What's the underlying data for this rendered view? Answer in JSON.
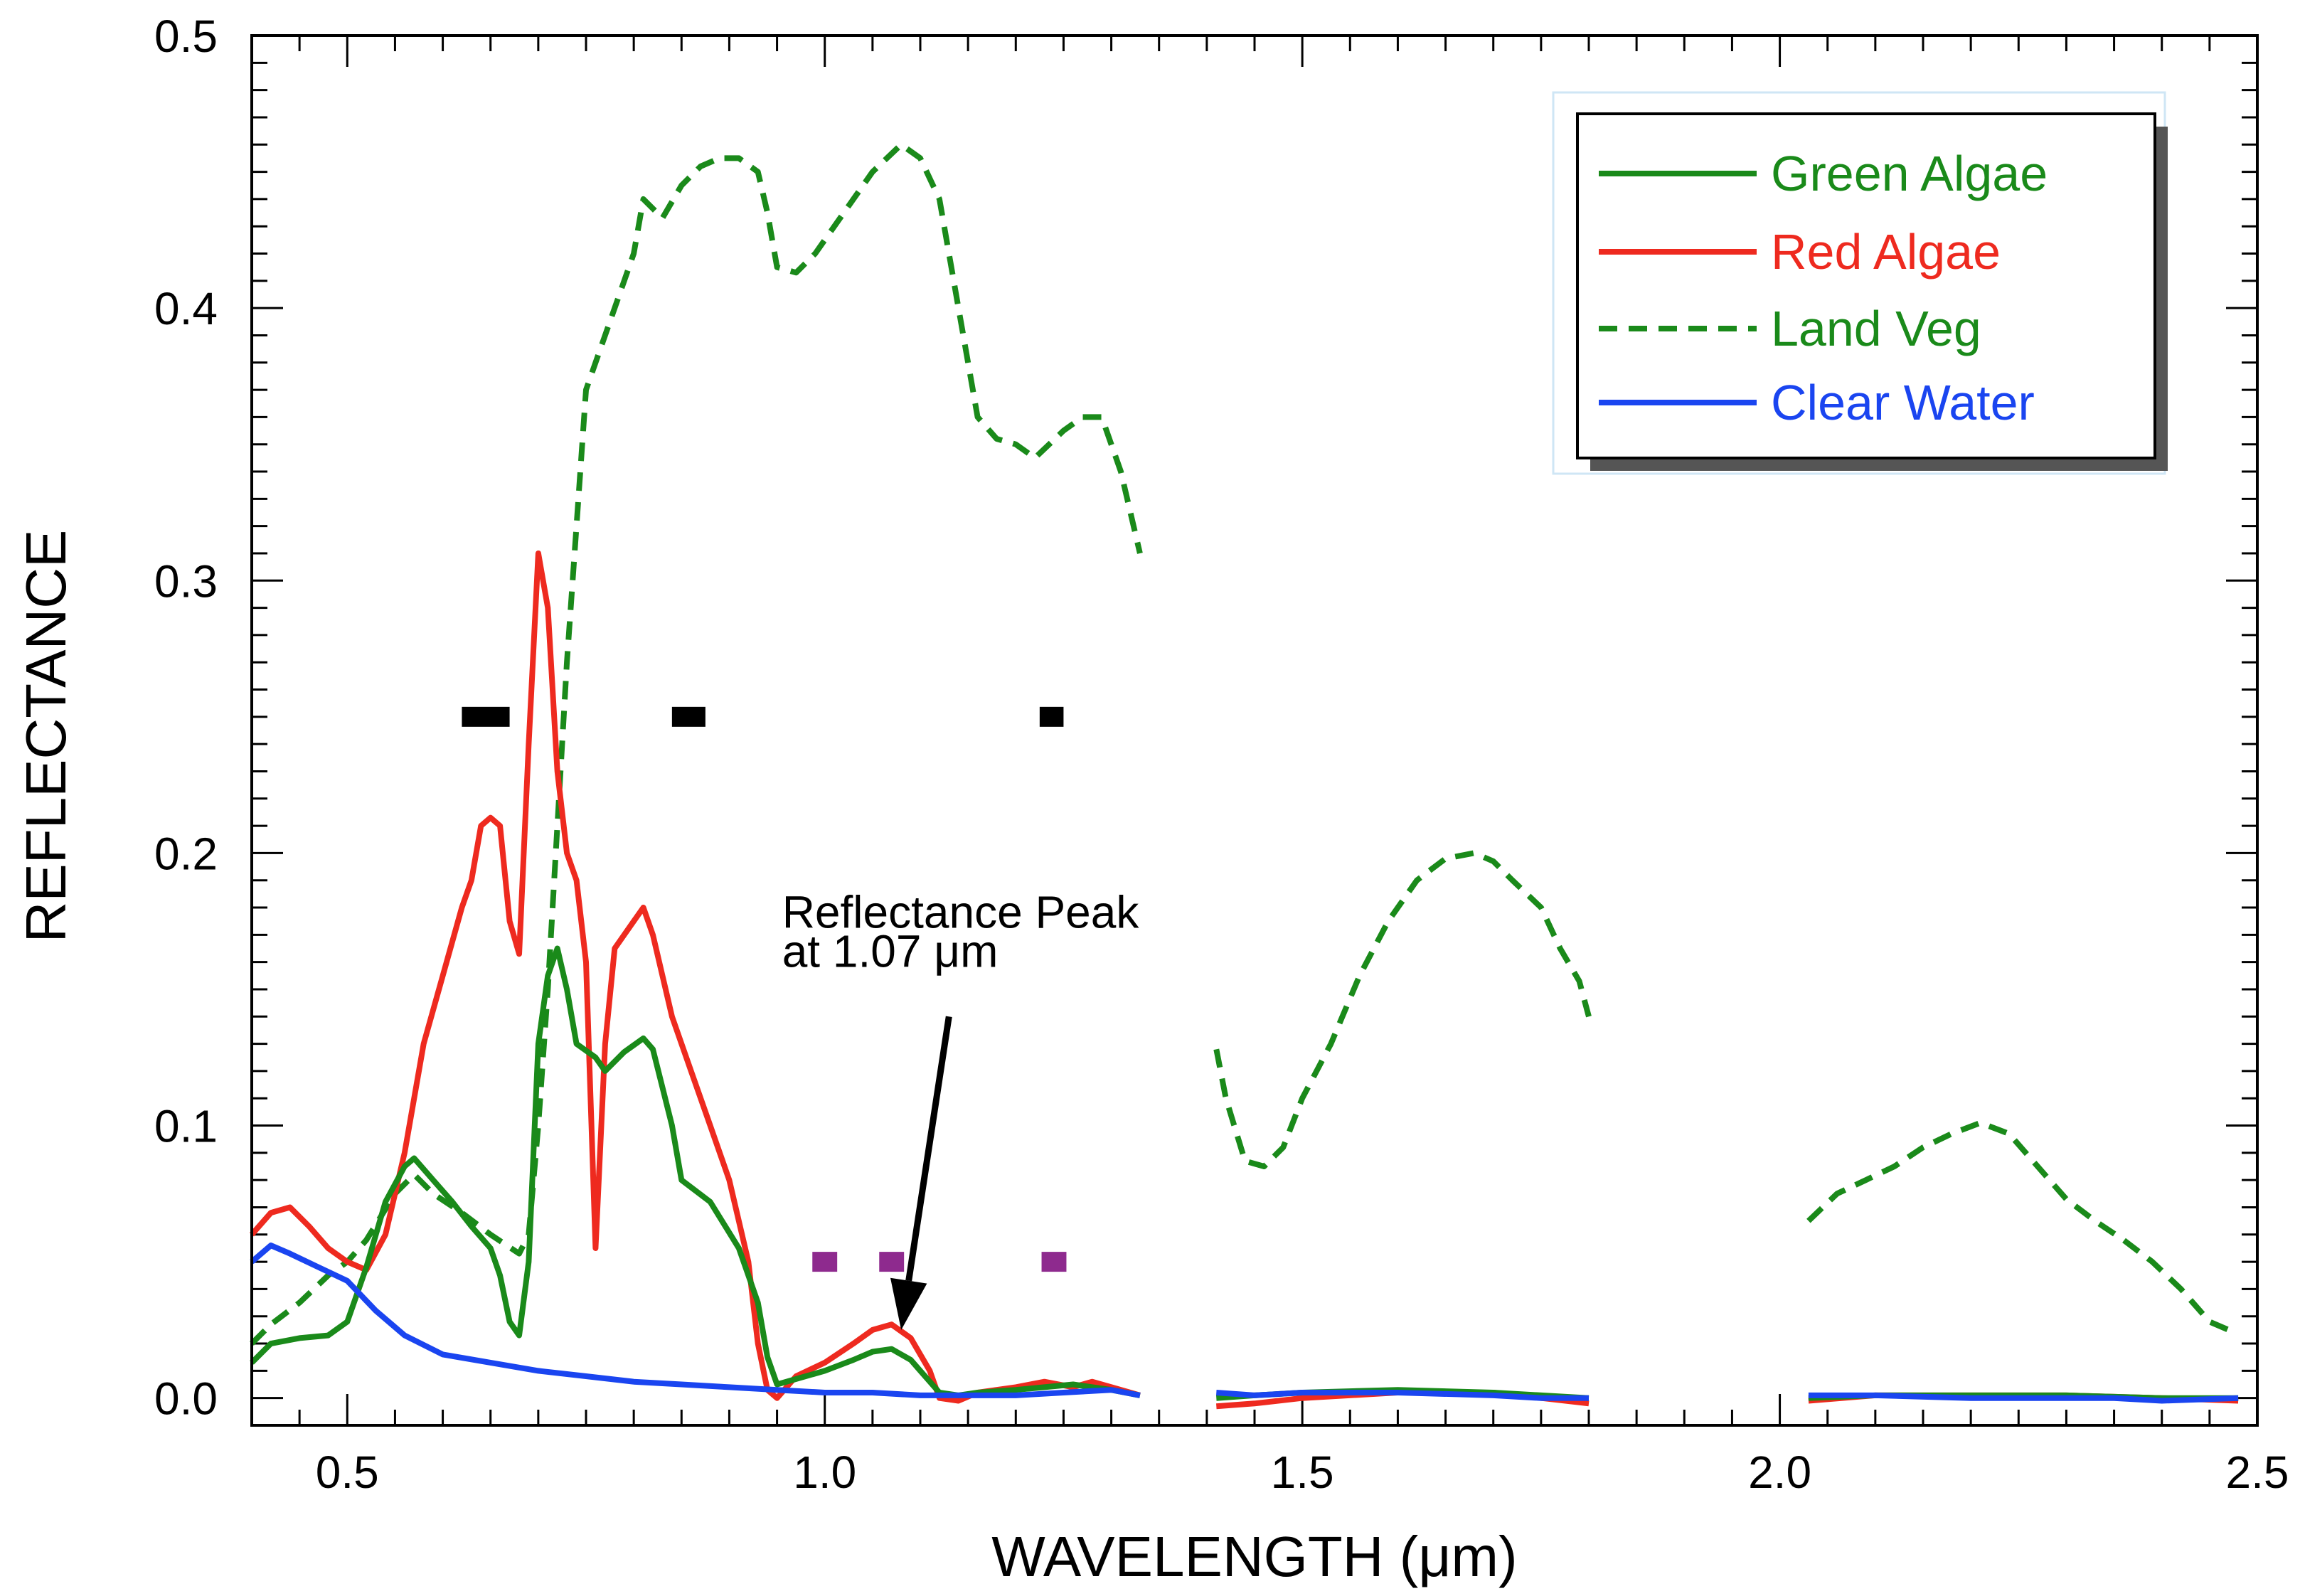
{
  "chart_data": {
    "type": "line",
    "title": "",
    "xlabel": "WAVELENGTH (μm)",
    "ylabel": "REFLECTANCE",
    "xlim": [
      0.4,
      2.5
    ],
    "ylim": [
      -0.01,
      0.5
    ],
    "xticks": [
      0.5,
      1.0,
      1.5,
      2.0,
      2.5
    ],
    "xtick_labels": [
      "0.5",
      "1.0",
      "1.5",
      "2.0",
      "2.5"
    ],
    "yticks": [
      0.0,
      0.1,
      0.2,
      0.3,
      0.4,
      0.5
    ],
    "ytick_labels": [
      "0.0",
      "0.1",
      "0.2",
      "0.3",
      "0.4",
      "0.5"
    ],
    "legend_position": "top-right",
    "series": [
      {
        "name": "Green Algae",
        "color": "#1a8a1a",
        "dash": "solid",
        "segments": [
          [
            [
              0.4,
              0.013
            ],
            [
              0.42,
              0.02
            ],
            [
              0.45,
              0.022
            ],
            [
              0.48,
              0.023
            ],
            [
              0.5,
              0.028
            ],
            [
              0.52,
              0.048
            ],
            [
              0.54,
              0.072
            ],
            [
              0.56,
              0.085
            ],
            [
              0.57,
              0.088
            ],
            [
              0.59,
              0.08
            ],
            [
              0.61,
              0.072
            ],
            [
              0.63,
              0.063
            ],
            [
              0.65,
              0.055
            ],
            [
              0.66,
              0.045
            ],
            [
              0.67,
              0.028
            ],
            [
              0.68,
              0.023
            ],
            [
              0.69,
              0.05
            ],
            [
              0.7,
              0.13
            ],
            [
              0.71,
              0.155
            ],
            [
              0.72,
              0.165
            ],
            [
              0.73,
              0.15
            ],
            [
              0.74,
              0.13
            ],
            [
              0.76,
              0.125
            ],
            [
              0.77,
              0.12
            ],
            [
              0.79,
              0.127
            ],
            [
              0.81,
              0.132
            ],
            [
              0.82,
              0.128
            ],
            [
              0.84,
              0.1
            ],
            [
              0.85,
              0.08
            ],
            [
              0.88,
              0.072
            ],
            [
              0.91,
              0.055
            ],
            [
              0.93,
              0.035
            ],
            [
              0.94,
              0.015
            ],
            [
              0.95,
              0.005
            ],
            [
              0.97,
              0.007
            ],
            [
              1.0,
              0.01
            ],
            [
              1.03,
              0.014
            ],
            [
              1.05,
              0.017
            ],
            [
              1.07,
              0.018
            ],
            [
              1.09,
              0.014
            ],
            [
              1.1,
              0.01
            ],
            [
              1.12,
              0.002
            ],
            [
              1.14,
              0.001
            ],
            [
              1.16,
              0.002
            ],
            [
              1.2,
              0.003
            ],
            [
              1.23,
              0.004
            ],
            [
              1.26,
              0.005
            ],
            [
              1.3,
              0.003
            ],
            [
              1.33,
              0.001
            ]
          ],
          [
            [
              1.41,
              0.0
            ],
            [
              1.45,
              0.001
            ],
            [
              1.5,
              0.002
            ],
            [
              1.6,
              0.003
            ],
            [
              1.7,
              0.002
            ],
            [
              1.8,
              0.0
            ]
          ],
          [
            [
              2.03,
              0.0
            ],
            [
              2.1,
              0.001
            ],
            [
              2.2,
              0.001
            ],
            [
              2.3,
              0.001
            ],
            [
              2.4,
              0.0
            ],
            [
              2.48,
              0.0
            ]
          ]
        ]
      },
      {
        "name": "Red Algae",
        "color": "#ee2a1f",
        "dash": "solid",
        "segments": [
          [
            [
              0.4,
              0.06
            ],
            [
              0.42,
              0.068
            ],
            [
              0.44,
              0.07
            ],
            [
              0.46,
              0.063
            ],
            [
              0.48,
              0.055
            ],
            [
              0.5,
              0.05
            ],
            [
              0.52,
              0.047
            ],
            [
              0.54,
              0.06
            ],
            [
              0.56,
              0.09
            ],
            [
              0.58,
              0.13
            ],
            [
              0.6,
              0.155
            ],
            [
              0.62,
              0.18
            ],
            [
              0.63,
              0.19
            ],
            [
              0.64,
              0.21
            ],
            [
              0.65,
              0.213
            ],
            [
              0.66,
              0.21
            ],
            [
              0.67,
              0.175
            ],
            [
              0.68,
              0.163
            ],
            [
              0.69,
              0.24
            ],
            [
              0.7,
              0.31
            ],
            [
              0.71,
              0.29
            ],
            [
              0.72,
              0.23
            ],
            [
              0.73,
              0.2
            ],
            [
              0.74,
              0.19
            ],
            [
              0.75,
              0.16
            ],
            [
              0.76,
              0.055
            ],
            [
              0.77,
              0.13
            ],
            [
              0.78,
              0.165
            ],
            [
              0.8,
              0.175
            ],
            [
              0.81,
              0.18
            ],
            [
              0.82,
              0.17
            ],
            [
              0.84,
              0.14
            ],
            [
              0.86,
              0.12
            ],
            [
              0.88,
              0.1
            ],
            [
              0.9,
              0.08
            ],
            [
              0.92,
              0.05
            ],
            [
              0.93,
              0.02
            ],
            [
              0.94,
              0.003
            ],
            [
              0.95,
              0.0
            ],
            [
              0.97,
              0.008
            ],
            [
              1.0,
              0.013
            ],
            [
              1.03,
              0.02
            ],
            [
              1.05,
              0.025
            ],
            [
              1.07,
              0.027
            ],
            [
              1.09,
              0.022
            ],
            [
              1.11,
              0.01
            ],
            [
              1.12,
              0.0
            ],
            [
              1.14,
              -0.001
            ],
            [
              1.16,
              0.002
            ],
            [
              1.2,
              0.004
            ],
            [
              1.23,
              0.006
            ],
            [
              1.26,
              0.004
            ],
            [
              1.28,
              0.006
            ],
            [
              1.3,
              0.004
            ],
            [
              1.33,
              0.001
            ]
          ],
          [
            [
              1.41,
              -0.003
            ],
            [
              1.45,
              -0.002
            ],
            [
              1.5,
              0.0
            ],
            [
              1.6,
              0.002
            ],
            [
              1.7,
              0.002
            ],
            [
              1.8,
              -0.002
            ]
          ],
          [
            [
              2.03,
              -0.001
            ],
            [
              2.1,
              0.001
            ],
            [
              2.2,
              0.001
            ],
            [
              2.3,
              0.001
            ],
            [
              2.4,
              0.0
            ],
            [
              2.48,
              -0.001
            ]
          ]
        ]
      },
      {
        "name": "Land Veg",
        "color": "#1a8a1a",
        "dash": "dashed",
        "segments": [
          [
            [
              0.4,
              0.02
            ],
            [
              0.42,
              0.027
            ],
            [
              0.45,
              0.035
            ],
            [
              0.48,
              0.045
            ],
            [
              0.5,
              0.05
            ],
            [
              0.52,
              0.058
            ],
            [
              0.55,
              0.075
            ],
            [
              0.57,
              0.082
            ],
            [
              0.59,
              0.075
            ],
            [
              0.62,
              0.068
            ],
            [
              0.65,
              0.06
            ],
            [
              0.68,
              0.053
            ],
            [
              0.69,
              0.06
            ],
            [
              0.7,
              0.1
            ],
            [
              0.71,
              0.15
            ],
            [
              0.72,
              0.21
            ],
            [
              0.73,
              0.27
            ],
            [
              0.74,
              0.32
            ],
            [
              0.75,
              0.37
            ],
            [
              0.76,
              0.38
            ],
            [
              0.78,
              0.4
            ],
            [
              0.8,
              0.42
            ],
            [
              0.81,
              0.44
            ],
            [
              0.83,
              0.433
            ],
            [
              0.85,
              0.445
            ],
            [
              0.87,
              0.452
            ],
            [
              0.89,
              0.455
            ],
            [
              0.91,
              0.455
            ],
            [
              0.93,
              0.45
            ],
            [
              0.94,
              0.435
            ],
            [
              0.95,
              0.415
            ],
            [
              0.97,
              0.413
            ],
            [
              0.99,
              0.42
            ],
            [
              1.02,
              0.435
            ],
            [
              1.05,
              0.45
            ],
            [
              1.08,
              0.46
            ],
            [
              1.1,
              0.455
            ],
            [
              1.12,
              0.44
            ],
            [
              1.14,
              0.4
            ],
            [
              1.16,
              0.36
            ],
            [
              1.18,
              0.352
            ],
            [
              1.2,
              0.35
            ],
            [
              1.22,
              0.345
            ],
            [
              1.25,
              0.355
            ],
            [
              1.27,
              0.36
            ],
            [
              1.29,
              0.36
            ],
            [
              1.31,
              0.34
            ],
            [
              1.33,
              0.31
            ]
          ],
          [
            [
              1.41,
              0.128
            ],
            [
              1.42,
              0.11
            ],
            [
              1.44,
              0.087
            ],
            [
              1.46,
              0.085
            ],
            [
              1.48,
              0.092
            ],
            [
              1.5,
              0.11
            ],
            [
              1.53,
              0.13
            ],
            [
              1.56,
              0.155
            ],
            [
              1.59,
              0.175
            ],
            [
              1.62,
              0.19
            ],
            [
              1.65,
              0.198
            ],
            [
              1.68,
              0.2
            ],
            [
              1.7,
              0.197
            ],
            [
              1.72,
              0.19
            ],
            [
              1.75,
              0.18
            ],
            [
              1.77,
              0.165
            ],
            [
              1.79,
              0.153
            ],
            [
              1.8,
              0.14
            ]
          ],
          [
            [
              2.03,
              0.065
            ],
            [
              2.06,
              0.075
            ],
            [
              2.09,
              0.08
            ],
            [
              2.12,
              0.085
            ],
            [
              2.15,
              0.092
            ],
            [
              2.18,
              0.097
            ],
            [
              2.21,
              0.101
            ],
            [
              2.24,
              0.097
            ],
            [
              2.27,
              0.085
            ],
            [
              2.3,
              0.073
            ],
            [
              2.33,
              0.065
            ],
            [
              2.36,
              0.058
            ],
            [
              2.39,
              0.05
            ],
            [
              2.42,
              0.04
            ],
            [
              2.45,
              0.028
            ],
            [
              2.47,
              0.025
            ]
          ]
        ]
      },
      {
        "name": "Clear Water",
        "color": "#1a45f0",
        "dash": "solid",
        "segments": [
          [
            [
              0.4,
              0.05
            ],
            [
              0.42,
              0.056
            ],
            [
              0.44,
              0.053
            ],
            [
              0.47,
              0.048
            ],
            [
              0.5,
              0.043
            ],
            [
              0.53,
              0.032
            ],
            [
              0.56,
              0.023
            ],
            [
              0.6,
              0.016
            ],
            [
              0.65,
              0.013
            ],
            [
              0.7,
              0.01
            ],
            [
              0.75,
              0.008
            ],
            [
              0.8,
              0.006
            ],
            [
              0.85,
              0.005
            ],
            [
              0.9,
              0.004
            ],
            [
              0.95,
              0.003
            ],
            [
              1.0,
              0.002
            ],
            [
              1.05,
              0.002
            ],
            [
              1.1,
              0.001
            ],
            [
              1.15,
              0.001
            ],
            [
              1.2,
              0.001
            ],
            [
              1.25,
              0.002
            ],
            [
              1.3,
              0.003
            ],
            [
              1.33,
              0.001
            ]
          ],
          [
            [
              1.41,
              0.002
            ],
            [
              1.45,
              0.001
            ],
            [
              1.5,
              0.002
            ],
            [
              1.6,
              0.002
            ],
            [
              1.7,
              0.001
            ],
            [
              1.75,
              0.0
            ],
            [
              1.8,
              0.0
            ]
          ],
          [
            [
              2.03,
              0.001
            ],
            [
              2.1,
              0.001
            ],
            [
              2.2,
              0.0
            ],
            [
              2.3,
              0.0
            ],
            [
              2.35,
              0.0
            ],
            [
              2.4,
              -0.001
            ],
            [
              2.48,
              0.0
            ]
          ]
        ]
      }
    ],
    "band_markers": [
      {
        "color": "#000000",
        "y": 0.25,
        "x_start": 0.62,
        "x_end": 0.67
      },
      {
        "color": "#000000",
        "y": 0.25,
        "x_start": 0.84,
        "x_end": 0.875
      },
      {
        "color": "#000000",
        "y": 0.25,
        "x_start": 1.225,
        "x_end": 1.25
      },
      {
        "color": "#8e2a8e",
        "y": 0.05,
        "x_start": 0.987,
        "x_end": 1.013
      },
      {
        "color": "#8e2a8e",
        "y": 0.05,
        "x_start": 1.057,
        "x_end": 1.083
      },
      {
        "color": "#8e2a8e",
        "y": 0.05,
        "x_start": 1.227,
        "x_end": 1.253
      }
    ],
    "annotation": {
      "lines": [
        "Reflectance Peak",
        "at 1.07 μm"
      ],
      "text_x": 1.0,
      "text_y": 0.183,
      "arrow_from": [
        1.13,
        0.14
      ],
      "arrow_to": [
        1.08,
        0.025
      ]
    }
  }
}
